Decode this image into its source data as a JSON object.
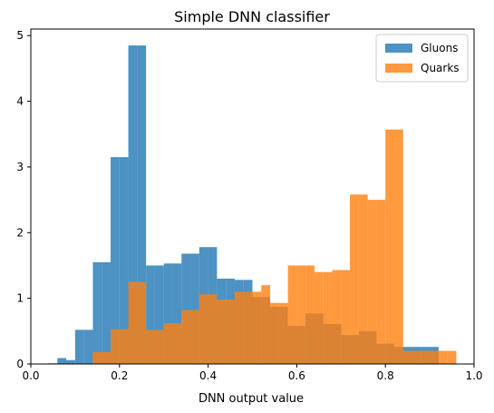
{
  "chart_data": {
    "type": "histogram",
    "title": "Simple DNN classifier",
    "xlabel": "DNN output value",
    "ylabel": "",
    "xlim": [
      0,
      1
    ],
    "ylim": [
      0,
      5.1
    ],
    "grid": false,
    "legend_position": "top-right",
    "x_ticks": [
      0,
      0.2,
      0.4,
      0.6,
      0.8,
      1
    ],
    "x_tick_labels": [
      "0.0",
      "0.2",
      "0.4",
      "0.6",
      "0.8",
      "1.0"
    ],
    "y_ticks": [
      0,
      1,
      2,
      3,
      4,
      5
    ],
    "y_tick_labels": [
      "0",
      "1",
      "2",
      "3",
      "4",
      "5"
    ],
    "series": [
      {
        "name": "Gluons",
        "color": "#1f77b4",
        "opacity": 0.8,
        "bin_edges": [
          0.02,
          0.04,
          0.06,
          0.08,
          0.1,
          0.12,
          0.14,
          0.16,
          0.18,
          0.2,
          0.22,
          0.24,
          0.26,
          0.28,
          0.3,
          0.32,
          0.34,
          0.36,
          0.38,
          0.4,
          0.42,
          0.44,
          0.46,
          0.48,
          0.5,
          0.52,
          0.54,
          0.56,
          0.58,
          0.6,
          0.62,
          0.64,
          0.66,
          0.68,
          0.7,
          0.72,
          0.74,
          0.76,
          0.78,
          0.8,
          0.82,
          0.84,
          0.86,
          0.88,
          0.9,
          0.92
        ],
        "values": [
          0.0,
          0.01,
          0.09,
          0.06,
          0.52,
          0.52,
          1.55,
          1.55,
          3.15,
          3.15,
          4.85,
          4.85,
          1.5,
          1.5,
          1.53,
          1.53,
          1.68,
          1.68,
          1.78,
          1.78,
          1.3,
          1.3,
          1.28,
          1.28,
          1.02,
          1.02,
          0.87,
          0.87,
          0.58,
          0.58,
          0.77,
          0.77,
          0.61,
          0.61,
          0.44,
          0.44,
          0.5,
          0.5,
          0.31,
          0.31,
          0.26,
          0.26,
          0.26,
          0.26,
          0.26
        ]
      },
      {
        "name": "Quarks",
        "color": "#ff7f0e",
        "opacity": 0.8,
        "bin_edges": [
          0.14,
          0.18,
          0.2,
          0.22,
          0.24,
          0.26,
          0.28,
          0.3,
          0.32,
          0.34,
          0.36,
          0.38,
          0.4,
          0.42,
          0.44,
          0.46,
          0.48,
          0.5,
          0.52,
          0.54,
          0.56,
          0.58,
          0.6,
          0.62,
          0.64,
          0.66,
          0.68,
          0.7,
          0.72,
          0.74,
          0.76,
          0.78,
          0.8,
          0.82,
          0.84,
          0.86,
          0.88,
          0.9,
          0.92,
          0.94,
          0.96
        ],
        "values": [
          0.18,
          0.53,
          0.53,
          1.25,
          1.25,
          0.52,
          0.52,
          0.62,
          0.62,
          0.82,
          0.82,
          1.06,
          1.06,
          0.98,
          0.98,
          1.1,
          1.1,
          1.1,
          1.2,
          0.93,
          0.93,
          1.5,
          1.5,
          1.5,
          1.4,
          1.4,
          1.43,
          1.43,
          2.58,
          2.58,
          2.5,
          2.5,
          3.57,
          3.57,
          0.2,
          0.2,
          0.2,
          0.2,
          0.2,
          0.2
        ]
      }
    ]
  }
}
